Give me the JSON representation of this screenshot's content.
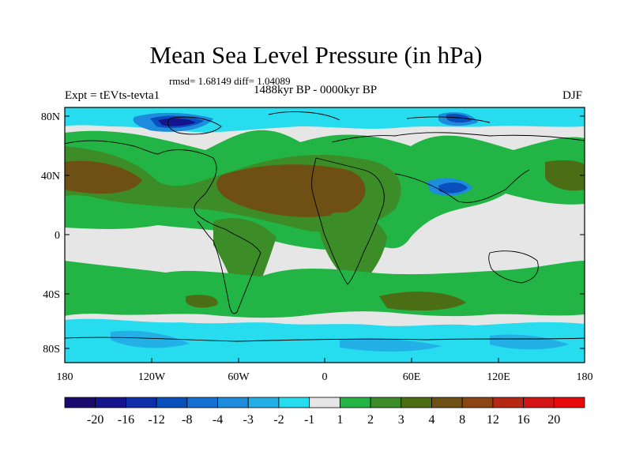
{
  "title": "Mean Sea Level Pressure (in hPa)",
  "stats": "rmsd= 1.68149 diff= 1.04089",
  "period": "1488kyr BP - 0000kyr BP",
  "experiment": "Expt = tEVts-tevta1",
  "season": "DJF",
  "lat_labels": [
    "80N",
    "40N",
    "0",
    "40S",
    "80S"
  ],
  "lon_labels": [
    "180",
    "120W",
    "60W",
    "0",
    "60E",
    "120E",
    "180"
  ],
  "colorbar": {
    "labels": [
      "-20",
      "-16",
      "-12",
      "-8",
      "-4",
      "-3",
      "-2",
      "-1",
      "1",
      "2",
      "3",
      "4",
      "8",
      "12",
      "16",
      "20"
    ],
    "colors": [
      "#1a0a6e",
      "#14148c",
      "#0f2eaa",
      "#0a4fbe",
      "#1470d2",
      "#1e8cdc",
      "#23b0e6",
      "#28dcf0",
      "#e6e6e6",
      "#23b446",
      "#3c8c28",
      "#4b6e14",
      "#6e5014",
      "#8c4614",
      "#b42814",
      "#d21414",
      "#e60a0a"
    ]
  },
  "colors": {
    "neutral": "#e6e6e6",
    "pos1": "#23b446",
    "pos2": "#3c8c28",
    "pos3": "#4b6e14",
    "pos4": "#6e5014",
    "neg1": "#28dcf0",
    "neg2": "#23b0e6",
    "neg3": "#1e8cdc",
    "neg4": "#1470d2",
    "neg5": "#0a4fbe",
    "neg6": "#14148c"
  }
}
